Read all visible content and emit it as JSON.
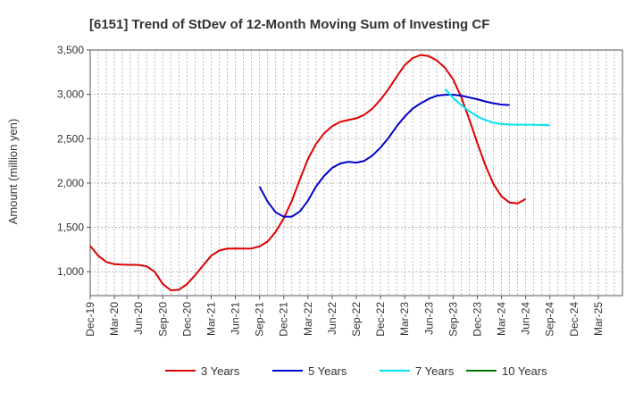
{
  "chart_data": {
    "type": "line",
    "title": "[6151]  Trend of StDev of 12-Month Moving Sum of Investing CF",
    "ylabel": "Amount (million yen)",
    "xlabel": "",
    "ylim": [
      730,
      3500
    ],
    "yticks": [
      1000,
      1500,
      2000,
      2500,
      3000,
      3500
    ],
    "ytick_labels": [
      "1,000",
      "1,500",
      "2,000",
      "2,500",
      "3,000",
      "3,500"
    ],
    "x_start": "Dec-19",
    "x_months": 66,
    "x_tick_labels": [
      "Dec-19",
      "Mar-20",
      "Jun-20",
      "Sep-20",
      "Dec-20",
      "Mar-21",
      "Jun-21",
      "Sep-21",
      "Dec-21",
      "Mar-22",
      "Jun-22",
      "Sep-22",
      "Dec-22",
      "Mar-23",
      "Jun-23",
      "Sep-23",
      "Dec-23",
      "Mar-24",
      "Jun-24",
      "Sep-24",
      "Dec-24",
      "Mar-25"
    ],
    "grid": true,
    "legend_position": "bottom",
    "series": [
      {
        "name": "3 Years",
        "color": "#dd0000",
        "start": "Dec-19",
        "values": [
          1290,
          1180,
          1110,
          1085,
          1080,
          1078,
          1076,
          1060,
          1000,
          860,
          790,
          795,
          860,
          960,
          1070,
          1180,
          1240,
          1260,
          1262,
          1260,
          1262,
          1285,
          1340,
          1450,
          1600,
          1800,
          2040,
          2270,
          2440,
          2560,
          2640,
          2690,
          2710,
          2730,
          2770,
          2840,
          2940,
          3060,
          3200,
          3330,
          3410,
          3445,
          3430,
          3380,
          3300,
          3170,
          2970,
          2720,
          2450,
          2200,
          1990,
          1850,
          1780,
          1770,
          1820
        ]
      },
      {
        "name": "5 Years",
        "color": "#0000cc",
        "start": "Sep-21",
        "values": [
          1960,
          1790,
          1670,
          1620,
          1620,
          1680,
          1800,
          1960,
          2080,
          2170,
          2220,
          2240,
          2230,
          2250,
          2310,
          2400,
          2510,
          2640,
          2750,
          2840,
          2900,
          2950,
          2985,
          2995,
          2995,
          2985,
          2965,
          2945,
          2920,
          2900,
          2885,
          2880
        ]
      },
      {
        "name": "7 Years",
        "color": "#00e5ee",
        "start": "Aug-23",
        "values": [
          3060,
          2960,
          2880,
          2810,
          2750,
          2710,
          2680,
          2665,
          2660,
          2658,
          2658,
          2658,
          2655,
          2652
        ]
      },
      {
        "name": "10 Years",
        "color": "#007700",
        "start": "Dec-19",
        "values": []
      }
    ]
  }
}
